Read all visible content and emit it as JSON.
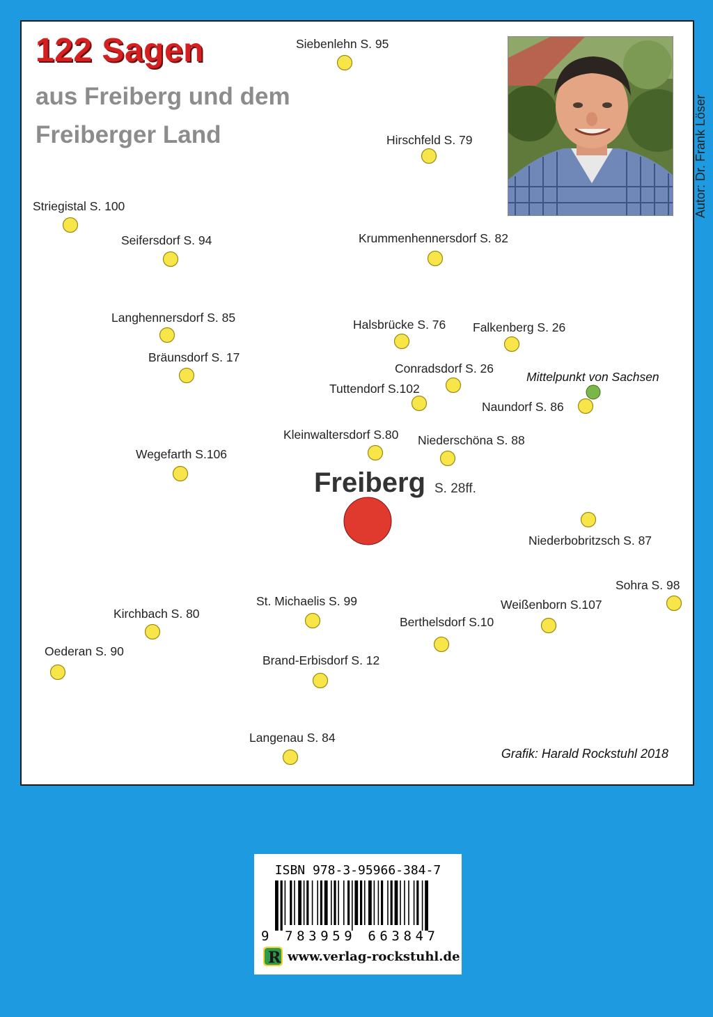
{
  "header": {
    "title": "122 Sagen",
    "subtitle_line1": "aus Freiberg und dem",
    "subtitle_line2": "Freiberger Land"
  },
  "author_photo": {
    "caption": "Autor: Dr. Frank Löser"
  },
  "map": {
    "center": {
      "name": "Freiberg",
      "page": "S. 28ff.",
      "color": "#e03a2f"
    },
    "marker_color": "#f7e54a",
    "midpoint_color": "#7ab648",
    "places": [
      {
        "label": "Siebenlehn S. 95"
      },
      {
        "label": "Hirschfeld S. 79"
      },
      {
        "label": "Striegistal S. 100"
      },
      {
        "label": "Seifersdorf S. 94"
      },
      {
        "label": "Krummenhennersdorf S. 82"
      },
      {
        "label": "Langhennersdorf S. 85"
      },
      {
        "label": "Halsbrücke S. 76"
      },
      {
        "label": "Falkenberg S. 26"
      },
      {
        "label": "Bräunsdorf S. 17"
      },
      {
        "label": "Conradsdorf S. 26"
      },
      {
        "label": "Tuttendorf S.102"
      },
      {
        "label": "Naundorf S. 86"
      },
      {
        "label": "Kleinwaltersdorf S.80"
      },
      {
        "label": "Niederschöna S. 88"
      },
      {
        "label": "Wegefarth S.106"
      },
      {
        "label": "Niederbobritzsch S. 87"
      },
      {
        "label": "Sohra S. 98"
      },
      {
        "label": "St. Michaelis S. 99"
      },
      {
        "label": "Weißenborn S.107"
      },
      {
        "label": "Kirchbach S. 80"
      },
      {
        "label": "Berthelsdorf S.10"
      },
      {
        "label": "Oederan S. 90"
      },
      {
        "label": "Brand-Erbisdorf S. 12"
      },
      {
        "label": "Langenau S. 84"
      }
    ],
    "midpoint_label": "Mittelpunkt von Sachsen"
  },
  "credit": "Grafik: Harald Rockstuhl 2018",
  "barcode": {
    "isbn": "ISBN 978-3-95966-384-7",
    "digits": "9 783959 663847",
    "publisher_logo": "R",
    "website": "www.verlag-rockstuhl.de"
  }
}
